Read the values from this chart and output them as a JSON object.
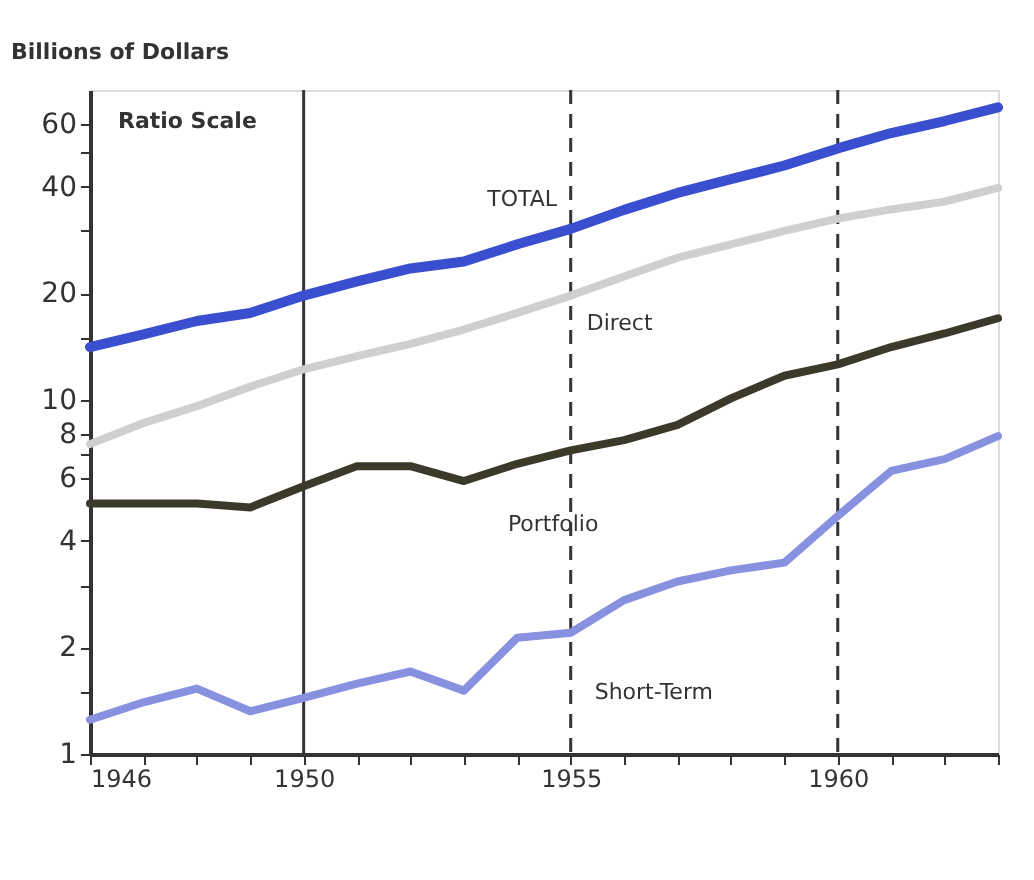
{
  "chart_data": {
    "type": "line",
    "ylabel": "Billions of Dollars",
    "annotations": [
      "Ratio Scale"
    ],
    "x": [
      1946,
      1947,
      1948,
      1949,
      1950,
      1951,
      1952,
      1953,
      1954,
      1955,
      1956,
      1957,
      1958,
      1959,
      1960,
      1961,
      1962,
      1963
    ],
    "series": [
      {
        "name": "TOTAL",
        "color": "#3a4fd0",
        "values": [
          14.1,
          15.3,
          16.7,
          17.6,
          19.7,
          21.6,
          23.5,
          24.6,
          27.5,
          30.4,
          34.4,
          38.4,
          42,
          45.9,
          51.3,
          56.7,
          61.3,
          67
        ]
      },
      {
        "name": "Direct",
        "color": "#cfcfcf",
        "values": [
          7.5,
          8.6,
          9.6,
          10.9,
          12.2,
          13.3,
          14.4,
          15.8,
          17.6,
          19.7,
          22.3,
          25.2,
          27.5,
          30,
          32.5,
          34.5,
          36.3,
          39.7
        ]
      },
      {
        "name": "Portfolio",
        "color": "#3b3a2a",
        "values": [
          5.1,
          5.1,
          5.1,
          4.97,
          5.7,
          6.5,
          6.5,
          5.9,
          6.6,
          7.2,
          7.7,
          8.5,
          10.1,
          11.7,
          12.6,
          14.1,
          15.4,
          17
        ]
      },
      {
        "name": "Short-Term",
        "color": "#8890e0",
        "values": [
          1.25,
          1.4,
          1.53,
          1.32,
          1.44,
          1.58,
          1.71,
          1.51,
          2.13,
          2.2,
          2.72,
          3.07,
          3.3,
          3.47,
          4.7,
          6.3,
          6.8,
          7.9
        ]
      }
    ],
    "log": true,
    "grid": false,
    "legend": false,
    "marker": "none",
    "line_style": "solid",
    "xlim": [
      1946,
      1963
    ],
    "xticks": [
      1946,
      {
        "value": 1947,
        "label": null
      },
      {
        "value": 1948,
        "label": null
      },
      {
        "value": 1949,
        "label": null
      },
      1950,
      {
        "value": 1951,
        "label": null
      },
      {
        "value": 1952,
        "label": null
      },
      {
        "value": 1953,
        "label": null
      },
      {
        "value": 1954,
        "label": null
      },
      1955,
      {
        "value": 1956,
        "label": null
      },
      {
        "value": 1957,
        "label": null
      },
      {
        "value": 1958,
        "label": null
      },
      {
        "value": 1959,
        "label": null
      },
      1960,
      {
        "value": 1961,
        "label": null
      },
      {
        "value": 1962,
        "label": null
      },
      {
        "value": 1963,
        "label": null
      }
    ],
    "ylim": [
      1,
      75
    ],
    "yticks": [
      1,
      {
        "value": 1.5,
        "label": null
      },
      2,
      {
        "value": 3,
        "label": null
      },
      4,
      6,
      {
        "value": 7,
        "label": null
      },
      8,
      10,
      {
        "value": 15,
        "label": null
      },
      20,
      {
        "value": 30,
        "label": null
      },
      40,
      {
        "value": 50,
        "label": null
      },
      60
    ],
    "ref_lines": [
      {
        "axis": "x",
        "value": 1950,
        "line_style": "solid",
        "color": "#333333"
      },
      {
        "axis": "x",
        "value": 1955,
        "line_style": "dashed",
        "color": "#333333"
      },
      {
        "axis": "x",
        "value": 1960,
        "line_style": "dashed",
        "color": "#333333"
      }
    ]
  }
}
